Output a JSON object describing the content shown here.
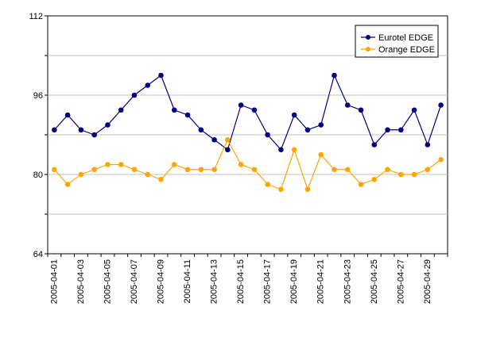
{
  "chart_data": {
    "type": "line",
    "title": "",
    "xlabel": "",
    "ylabel": "",
    "ylim": [
      64,
      112
    ],
    "yticks": [
      64,
      80,
      96,
      112
    ],
    "grid": "horizontal",
    "legend": "top-right",
    "x": [
      "2005-04-01",
      "2005-04-02",
      "2005-04-03",
      "2005-04-04",
      "2005-04-05",
      "2005-04-06",
      "2005-04-07",
      "2005-04-08",
      "2005-04-09",
      "2005-04-10",
      "2005-04-11",
      "2005-04-12",
      "2005-04-13",
      "2005-04-14",
      "2005-04-15",
      "2005-04-16",
      "2005-04-17",
      "2005-04-18",
      "2005-04-19",
      "2005-04-20",
      "2005-04-21",
      "2005-04-22",
      "2005-04-23",
      "2005-04-24",
      "2005-04-25",
      "2005-04-26",
      "2005-04-27",
      "2005-04-28",
      "2005-04-29",
      "2005-04-30"
    ],
    "x_tick_labels": [
      "2005-04-01",
      "2005-04-03",
      "2005-04-05",
      "2005-04-07",
      "2005-04-09",
      "2005-04-11",
      "2005-04-13",
      "2005-04-15",
      "2005-04-17",
      "2005-04-19",
      "2005-04-21",
      "2005-04-23",
      "2005-04-25",
      "2005-04-27",
      "2005-04-29"
    ],
    "series": [
      {
        "name": "Eurotel EDGE",
        "color": "#000080",
        "values": [
          89,
          92,
          89,
          88,
          90,
          93,
          96,
          98,
          100,
          93,
          92,
          89,
          87,
          85,
          94,
          93,
          88,
          85,
          92,
          89,
          90,
          100,
          94,
          93,
          86,
          89,
          89,
          93,
          86,
          94
        ]
      },
      {
        "name": "Orange EDGE",
        "color": "#FFA500",
        "values": [
          81,
          78,
          80,
          81,
          82,
          82,
          81,
          80,
          79,
          82,
          81,
          81,
          81,
          87,
          82,
          81,
          78,
          77,
          85,
          77,
          84,
          81,
          81,
          78,
          79,
          81,
          80,
          80,
          81,
          83
        ]
      }
    ]
  }
}
